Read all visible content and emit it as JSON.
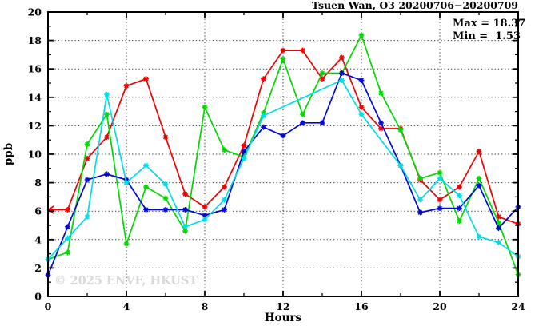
{
  "page": {
    "background": "#ffffff"
  },
  "chart_data": {
    "type": "line",
    "title": "Tsuen Wan, O3 20200706−20200709",
    "xlabel": "Hours",
    "ylabel": "ppb",
    "xlim": [
      0,
      24
    ],
    "ylim": [
      0,
      20
    ],
    "x_major_ticks": [
      0,
      4,
      8,
      12,
      16,
      20,
      24
    ],
    "x_minor_ticks": [
      2,
      6,
      10,
      14,
      18,
      22
    ],
    "y_major_ticks": [
      0,
      2,
      4,
      6,
      8,
      10,
      12,
      14,
      16,
      18,
      20
    ],
    "y_minor_ticks": [
      1,
      3,
      5,
      7,
      9,
      11,
      13,
      15,
      17,
      19
    ],
    "grid": {
      "x_lines": [
        4,
        8,
        12,
        16,
        20
      ],
      "y_lines": [
        2,
        4,
        6,
        8,
        10,
        12,
        14,
        16,
        18
      ]
    },
    "legend": {
      "position": "top-right",
      "lines": [
        "Max = 18.37",
        "Min =  1.53"
      ]
    },
    "watermark": "© 2025 ENVF, HKUST",
    "stats": {
      "max": 18.37,
      "min": 1.53
    },
    "x": [
      0,
      1,
      2,
      3,
      4,
      5,
      6,
      7,
      8,
      9,
      10,
      11,
      12,
      13,
      14,
      15,
      16,
      17,
      18,
      19,
      20,
      21,
      22,
      23,
      24
    ],
    "series": [
      {
        "name": "red",
        "color": "#f00000",
        "start_arrow": true,
        "values": [
          6.1,
          6.1,
          9.7,
          11.2,
          14.8,
          15.3,
          11.2,
          7.2,
          6.3,
          7.7,
          10.6,
          15.3,
          17.3,
          17.3,
          15.3,
          16.8,
          13.3,
          11.8,
          11.8,
          8.2,
          6.8,
          7.7,
          10.2,
          5.6,
          5.1
        ]
      },
      {
        "name": "green",
        "color": "#00d800",
        "start_arrow": false,
        "values": [
          2.6,
          3.1,
          10.7,
          12.8,
          3.7,
          7.7,
          6.9,
          4.6,
          13.3,
          10.3,
          9.8,
          12.9,
          16.7,
          12.8,
          15.7,
          15.7,
          18.37,
          14.3,
          11.7,
          8.3,
          8.7,
          5.3,
          8.3,
          5.2,
          1.53
        ]
      },
      {
        "name": "blue",
        "color": "#0008d8",
        "start_arrow": false,
        "values": [
          1.5,
          4.9,
          8.2,
          8.6,
          8.2,
          6.1,
          6.1,
          6.1,
          5.7,
          6.1,
          10.2,
          11.9,
          11.3,
          12.2,
          12.2,
          15.7,
          15.2,
          12.2,
          9.2,
          5.9,
          6.2,
          6.2,
          7.8,
          4.8,
          6.3
        ]
      },
      {
        "name": "cyan",
        "color": "#00dde8",
        "start_arrow": false,
        "values": [
          2.6,
          4.1,
          5.6,
          14.2,
          8.0,
          9.2,
          7.9,
          4.9,
          5.4,
          6.8,
          9.7,
          12.7,
          null,
          null,
          null,
          15.2,
          12.8,
          null,
          9.2,
          6.8,
          8.3,
          7.1,
          4.2,
          3.8,
          2.8
        ]
      }
    ]
  }
}
